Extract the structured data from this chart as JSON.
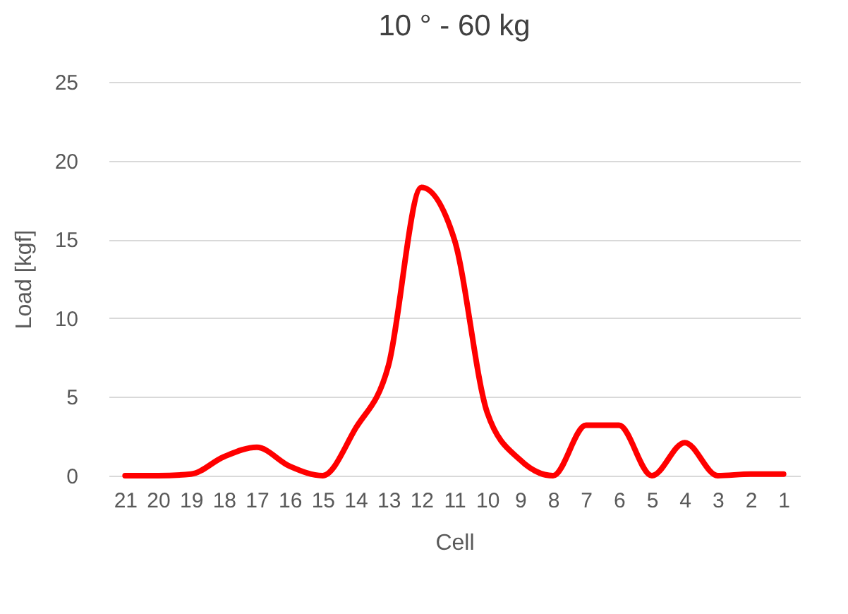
{
  "chart_data": {
    "type": "line",
    "title": "10 ° - 60 kg",
    "xlabel": "Cell",
    "ylabel": "Load [kgf]",
    "categories": [
      "21",
      "20",
      "19",
      "18",
      "17",
      "16",
      "15",
      "14",
      "13",
      "12",
      "11",
      "10",
      "9",
      "8",
      "7",
      "6",
      "5",
      "4",
      "3",
      "2",
      "1"
    ],
    "series": [
      {
        "color": "#ff0000",
        "values": [
          0,
          0,
          0.1,
          1.2,
          1.8,
          0.6,
          0,
          3,
          7,
          18.3,
          15,
          4,
          1,
          0,
          3.2,
          3.2,
          0,
          2.1,
          0,
          0.1,
          0.1
        ]
      }
    ],
    "ylim": [
      0,
      25
    ],
    "yticks": [
      0,
      5,
      10,
      15,
      20,
      25
    ],
    "grid": "y",
    "legend": false,
    "marker": "none",
    "line_style": "solid"
  }
}
